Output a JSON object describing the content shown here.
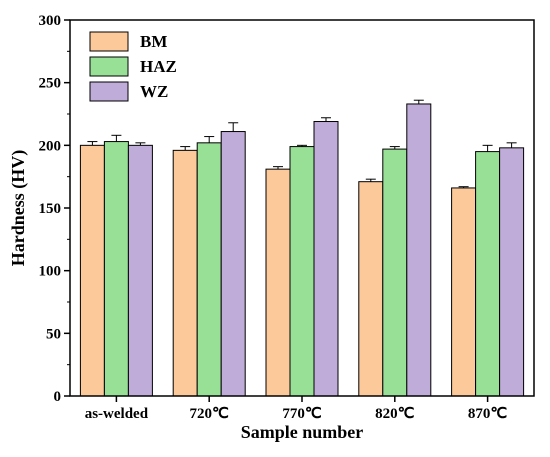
{
  "chart_data": {
    "type": "bar",
    "xlabel": "Sample number",
    "ylabel": "Hardness (HV)",
    "ylim": [
      0,
      300
    ],
    "yticks": [
      0,
      50,
      100,
      150,
      200,
      250,
      300
    ],
    "categories": [
      "as-welded",
      "720℃",
      "770℃",
      "820℃",
      "870℃"
    ],
    "series": [
      {
        "name": "BM",
        "color": "#fcc99a",
        "values": [
          200,
          196,
          181,
          171,
          166
        ],
        "errors": [
          3,
          3,
          2,
          2,
          1
        ]
      },
      {
        "name": "HAZ",
        "color": "#97e096",
        "values": [
          203,
          202,
          199,
          197,
          195
        ],
        "errors": [
          5,
          5,
          1,
          2,
          5
        ]
      },
      {
        "name": "WZ",
        "color": "#c0acd8",
        "values": [
          200,
          211,
          219,
          233,
          198
        ],
        "errors": [
          2,
          7,
          3,
          3,
          4
        ]
      }
    ],
    "legend": "top-left",
    "grid": false
  }
}
